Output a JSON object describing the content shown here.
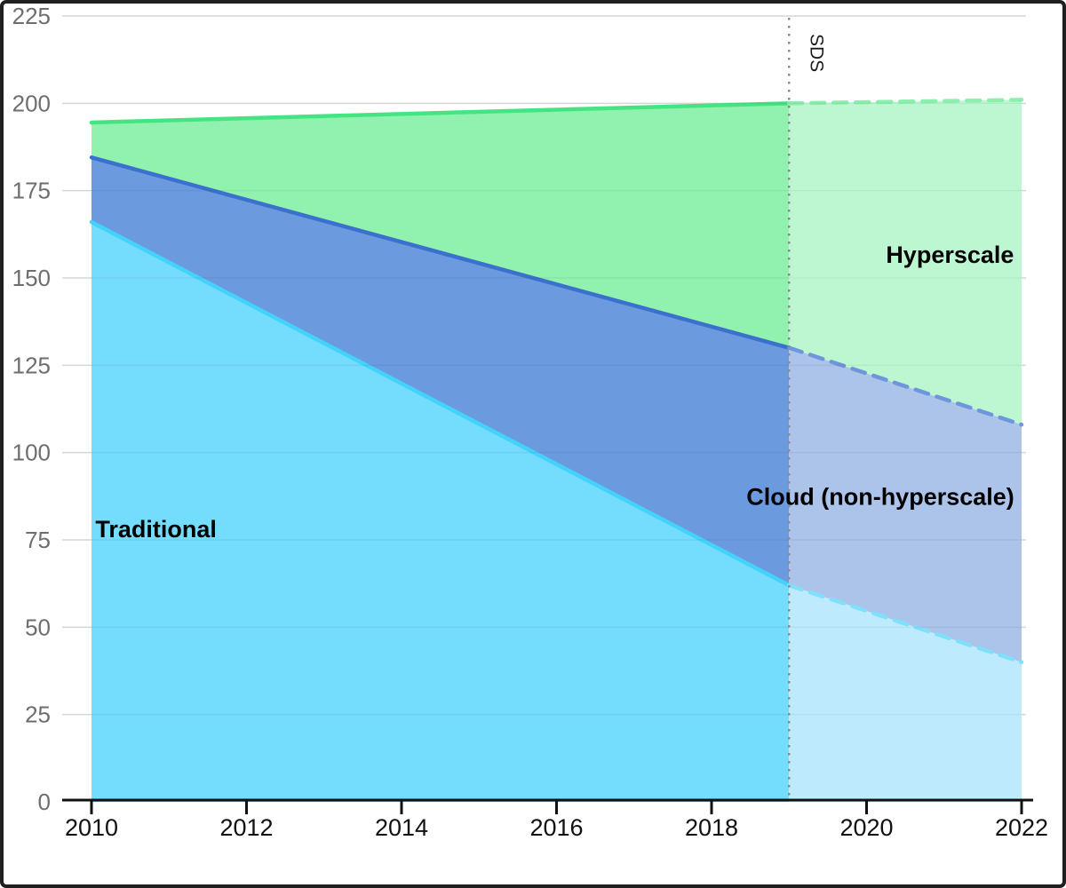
{
  "chart_data": {
    "type": "area",
    "title": "",
    "xlabel": "",
    "ylabel": "",
    "xlim": [
      2010,
      2022
    ],
    "ylim": [
      0,
      225
    ],
    "grid": true,
    "x_ticks": [
      2010,
      2012,
      2014,
      2016,
      2018,
      2020,
      2022
    ],
    "y_ticks": [
      0,
      25,
      50,
      75,
      100,
      125,
      150,
      175,
      200,
      225
    ],
    "x": [
      2010,
      2019,
      2022
    ],
    "forecast_start": 2019,
    "series": [
      {
        "name": "Traditional",
        "stack_top": [
          166,
          62,
          40
        ],
        "fill": "#74DCFD",
        "fill_forecast": "#BDEBFD",
        "line": "#42D2FB",
        "line_forecast": "#7FDFFC"
      },
      {
        "name": "Cloud (non-hyperscale)",
        "stack_top": [
          184.5,
          130,
          108
        ],
        "fill": "#6C9ADF",
        "fill_forecast": "#ACC3EA",
        "line": "#3B71CE",
        "line_forecast": "#6E97DB"
      },
      {
        "name": "Hyperscale",
        "stack_top": [
          194.5,
          200,
          201
        ],
        "fill": "#90F2AE",
        "fill_forecast": "#BCF7D2",
        "line": "#45E483",
        "line_forecast": "#8BEFAD"
      }
    ],
    "divider": {
      "year": 2019,
      "label": "SDS"
    },
    "annotations": [
      {
        "text": "Traditional",
        "x": 2010.05,
        "y": 75.8
      },
      {
        "text": "Cloud (non-hyperscale)",
        "x": 2018.45,
        "y": 85.0
      },
      {
        "text": "Hyperscale",
        "x": 2020.25,
        "y": 154.3
      }
    ],
    "legend_position": "none",
    "colors": {
      "background": "#FFFFFF",
      "border": "#1F1F1F",
      "grid": "#E2E2E2",
      "grid_over_fill": "rgba(0,0,0,0.05)",
      "axis": "#111111",
      "x_tick_label": "#111111",
      "y_tick_label": "#6E6E6E",
      "divider": "#8A8A8A",
      "divider_label": "#1A1A1A",
      "annotation": "#000000"
    }
  }
}
